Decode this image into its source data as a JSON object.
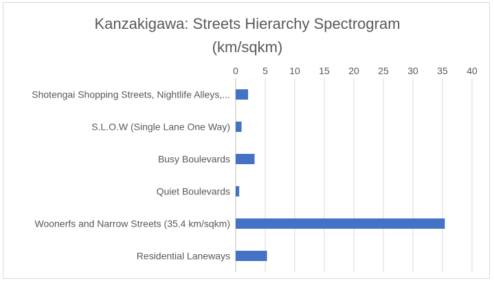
{
  "chart_data": {
    "type": "bar",
    "orientation": "horizontal",
    "title": "Kanzakigawa:  Streets Hierarchy Spectrogram",
    "subtitle": "(km/sqkm)",
    "xaxis_position": "top",
    "xlim": [
      0,
      40
    ],
    "xticks": [
      0,
      5,
      10,
      15,
      20,
      25,
      30,
      35,
      40
    ],
    "grid": true,
    "legend": "none",
    "bar_color": "#4472C4",
    "categories": [
      "Shotengai Shopping Streets, Nightlife Alleys,...",
      "S.L.O.W (Single Lane One Way)",
      "Busy Boulevards",
      "Quiet Boulevards",
      "Woonerfs and Narrow Streets (35.4 km/sqkm)",
      "Residential Laneways"
    ],
    "values": [
      2.1,
      1.0,
      3.2,
      0.6,
      35.4,
      5.3
    ]
  }
}
